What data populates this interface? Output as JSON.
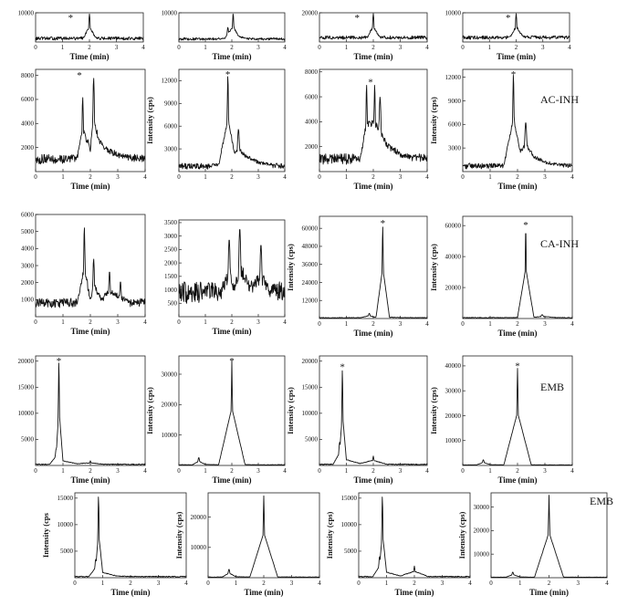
{
  "figure": {
    "row_labels": [
      "",
      "",
      "AC-INH",
      "CA-INH",
      "EMB",
      "EMB"
    ]
  },
  "chart_data": [
    {
      "type": "line",
      "xlabel": "Time (min)",
      "ylabel": "",
      "xticks": [
        0,
        1,
        2,
        3,
        4
      ],
      "yticks": [
        10000
      ],
      "xlim": [
        0,
        4
      ],
      "ylim": [
        0,
        10000
      ],
      "star_x": 1.3,
      "peaks": [
        [
          2.0,
          9600,
          0.025
        ]
      ],
      "baseline": 1200,
      "noise": 700,
      "x": [
        0,
        0.25,
        0.5,
        0.75,
        1,
        1.25,
        1.5,
        1.75,
        2,
        2.25,
        2.5,
        2.75,
        3,
        3.25,
        3.5,
        3.75,
        4
      ],
      "y": [
        1200,
        1300,
        1150,
        1400,
        1600,
        1500,
        1800,
        1900,
        9600,
        2200,
        1700,
        1500,
        1450,
        1350,
        1300,
        1250,
        1200
      ]
    },
    {
      "type": "line",
      "xlabel": "Time (min)",
      "ylabel": "",
      "xticks": [
        0,
        1,
        2,
        3,
        4
      ],
      "yticks": [
        10000
      ],
      "xlim": [
        0,
        4
      ],
      "ylim": [
        0,
        10000
      ],
      "star_x": null,
      "peaks": [
        [
          1.85,
          5000,
          0.03
        ],
        [
          2.05,
          9700,
          0.025
        ]
      ],
      "baseline": 1000,
      "noise": 600,
      "x": [
        0,
        0.25,
        0.5,
        0.75,
        1,
        1.25,
        1.5,
        1.75,
        1.85,
        2.05,
        2.25,
        2.5,
        2.75,
        3,
        3.25,
        3.5,
        3.75,
        4
      ],
      "y": [
        1000,
        1100,
        1200,
        1050,
        1300,
        1500,
        1600,
        2500,
        5000,
        9700,
        3500,
        2200,
        1800,
        1600,
        1500,
        1400,
        1300,
        1200
      ]
    },
    {
      "type": "line",
      "xlabel": "Time (min)",
      "ylabel": "",
      "xticks": [
        0,
        1,
        2,
        3,
        4
      ],
      "yticks": [
        20000
      ],
      "xlim": [
        0,
        4
      ],
      "ylim": [
        0,
        20000
      ],
      "star_x": 1.4,
      "peaks": [
        [
          2.0,
          19500,
          0.025
        ]
      ],
      "baseline": 3000,
      "noise": 1500,
      "x": [
        0,
        0.5,
        1,
        1.5,
        1.75,
        2,
        2.25,
        2.5,
        3,
        3.5,
        4
      ],
      "y": [
        3000,
        3200,
        3500,
        4000,
        4500,
        19500,
        5000,
        4000,
        3600,
        3300,
        3100
      ]
    },
    {
      "type": "line",
      "xlabel": "Time (min)",
      "ylabel": "",
      "xticks": [
        0,
        1,
        2,
        3,
        4
      ],
      "yticks": [
        10000
      ],
      "xlim": [
        0,
        4
      ],
      "ylim": [
        0,
        10000
      ],
      "star_x": 1.7,
      "peaks": [
        [
          2.0,
          9700,
          0.025
        ]
      ],
      "baseline": 1500,
      "noise": 800,
      "x": [
        0,
        0.5,
        1,
        1.5,
        1.75,
        2,
        2.25,
        2.5,
        3,
        3.5,
        4
      ],
      "y": [
        1500,
        1700,
        1900,
        2300,
        2600,
        9700,
        3200,
        2400,
        2000,
        1800,
        1600
      ]
    },
    {
      "type": "line",
      "xlabel": "Time (min)",
      "ylabel": "",
      "xticks": [
        0,
        1,
        2,
        3,
        4
      ],
      "yticks": [
        2000,
        4000,
        6000,
        8000
      ],
      "xlim": [
        0,
        4
      ],
      "ylim": [
        0,
        8500
      ],
      "star_x": 1.6,
      "peaks": [
        [
          1.72,
          6200,
          0.025
        ],
        [
          2.12,
          7800,
          0.03
        ]
      ],
      "baseline": 1000,
      "noise": 550,
      "x": [
        0,
        0.5,
        1,
        1.5,
        1.72,
        2,
        2.12,
        2.3,
        2.5,
        2.75,
        3,
        3.5,
        4
      ],
      "y": [
        900,
        1000,
        1300,
        1800,
        6200,
        3500,
        7800,
        5000,
        3800,
        3000,
        2500,
        1900,
        1500
      ]
    },
    {
      "type": "line",
      "xlabel": "",
      "ylabel": "Intensity (cps)",
      "xticks": [
        0,
        1,
        2,
        3,
        4
      ],
      "yticks": [
        3000,
        6000,
        9000,
        12000
      ],
      "xlim": [
        0,
        4
      ],
      "ylim": [
        0,
        13500
      ],
      "star_x": 1.85,
      "peaks": [
        [
          1.85,
          12700,
          0.025
        ],
        [
          2.25,
          5600,
          0.04
        ]
      ],
      "baseline": 700,
      "noise": 500,
      "x": [
        0,
        0.5,
        1,
        1.5,
        1.85,
        2.1,
        2.25,
        2.5,
        3,
        3.5,
        4
      ],
      "y": [
        600,
        700,
        800,
        1400,
        12700,
        4500,
        5600,
        3800,
        2200,
        1400,
        1000
      ]
    },
    {
      "type": "line",
      "xlabel": "Time (min)",
      "ylabel": "",
      "xticks": [
        0,
        1,
        2,
        3,
        4
      ],
      "yticks": [
        2000,
        4000,
        6000,
        8000
      ],
      "xlim": [
        0,
        4
      ],
      "ylim": [
        0,
        8200
      ],
      "star_x": 1.9,
      "peaks": [
        [
          1.75,
          7000,
          0.025
        ],
        [
          2.05,
          7000,
          0.025
        ],
        [
          2.25,
          6000,
          0.04
        ]
      ],
      "baseline": 1000,
      "noise": 550,
      "x": [
        0,
        0.5,
        1,
        1.5,
        1.75,
        2.05,
        2.25,
        2.5,
        3,
        3.5,
        4
      ],
      "y": [
        900,
        1000,
        1300,
        1800,
        7000,
        7000,
        6000,
        3800,
        2600,
        1900,
        1500
      ]
    },
    {
      "type": "line",
      "xlabel": "Time (min)",
      "ylabel": "Intensity (cps)",
      "xticks": [
        0,
        1,
        2,
        3,
        4
      ],
      "yticks": [
        3000,
        6000,
        9000,
        12000
      ],
      "xlim": [
        0,
        4
      ],
      "ylim": [
        0,
        13000
      ],
      "star_x": 1.85,
      "peaks": [
        [
          1.85,
          12400,
          0.025
        ],
        [
          2.3,
          6300,
          0.04
        ]
      ],
      "baseline": 700,
      "noise": 450,
      "x": [
        0,
        0.5,
        1,
        1.5,
        1.85,
        2.1,
        2.3,
        2.6,
        3,
        3.5,
        4
      ],
      "y": [
        700,
        750,
        850,
        1300,
        12400,
        4600,
        6300,
        3500,
        2200,
        1500,
        1100
      ]
    },
    {
      "type": "line",
      "xlabel": "Time (min)",
      "ylabel": "",
      "xticks": [
        0,
        1,
        2,
        3,
        4
      ],
      "yticks": [
        1000,
        2000,
        3000,
        4000,
        5000,
        6000
      ],
      "xlim": [
        0,
        4
      ],
      "ylim": [
        0,
        6000
      ],
      "star_x": null,
      "peaks": [
        [
          1.78,
          5300,
          0.025
        ],
        [
          2.12,
          3400,
          0.03
        ],
        [
          2.7,
          2700,
          0.03
        ],
        [
          3.1,
          2100,
          0.03
        ]
      ],
      "baseline": 800,
      "noise": 350,
      "x": [
        0,
        0.5,
        1,
        1.5,
        1.78,
        2,
        2.12,
        2.4,
        2.7,
        3.1,
        3.5,
        4
      ],
      "y": [
        800,
        850,
        900,
        1000,
        5300,
        1700,
        3400,
        1800,
        2700,
        2100,
        1300,
        1000
      ]
    },
    {
      "type": "line",
      "xlabel": "Time (min)",
      "ylabel": "",
      "xticks": [
        0,
        1,
        2,
        3,
        4
      ],
      "yticks": [
        500,
        1000,
        1500,
        2000,
        2500,
        3000,
        3500
      ],
      "xlim": [
        0,
        4
      ],
      "ylim": [
        0,
        3600
      ],
      "star_x": null,
      "peaks": [
        [
          1.9,
          2900,
          0.04
        ],
        [
          2.3,
          3300,
          0.04
        ],
        [
          3.1,
          2700,
          0.04
        ]
      ],
      "baseline": 900,
      "noise": 500,
      "x": [
        0,
        0.5,
        1,
        1.5,
        1.9,
        2.1,
        2.3,
        2.7,
        3.1,
        3.5,
        4
      ],
      "y": [
        800,
        900,
        1000,
        1200,
        2900,
        2000,
        3300,
        1900,
        2700,
        1500,
        1100
      ]
    },
    {
      "type": "line",
      "xlabel": "Time (min)",
      "ylabel": "Intensity (cps)",
      "xticks": [
        0,
        1,
        2,
        3,
        4
      ],
      "yticks": [
        12000,
        24000,
        36000,
        48000,
        60000
      ],
      "xlim": [
        0,
        4
      ],
      "ylim": [
        0,
        68000
      ],
      "star_x": 2.35,
      "peaks": [
        [
          2.35,
          62000,
          0.02
        ],
        [
          1.85,
          3500,
          0.03
        ]
      ],
      "baseline": 500,
      "noise": 350,
      "x": [
        0,
        0.5,
        1,
        1.5,
        1.85,
        2.1,
        2.35,
        2.6,
        3,
        3.5,
        4
      ],
      "y": [
        500,
        550,
        600,
        800,
        3500,
        1200,
        62000,
        1500,
        1000,
        700,
        600
      ]
    },
    {
      "type": "line",
      "xlabel": "Time (min)",
      "ylabel": "Intensity (cps)",
      "xticks": [
        0,
        1,
        2,
        3,
        4
      ],
      "yticks": [
        20000,
        40000,
        60000
      ],
      "xlim": [
        0,
        4
      ],
      "ylim": [
        0,
        66000
      ],
      "star_x": 2.3,
      "peaks": [
        [
          2.3,
          59000,
          0.02
        ],
        [
          2.9,
          2500,
          0.04
        ]
      ],
      "baseline": 500,
      "noise": 350,
      "x": [
        0,
        0.5,
        1,
        1.5,
        2,
        2.3,
        2.6,
        2.9,
        3.5,
        4
      ],
      "y": [
        500,
        500,
        600,
        800,
        1200,
        59000,
        1400,
        2500,
        900,
        700
      ]
    },
    {
      "type": "line",
      "xlabel": "Time (min)",
      "ylabel": "",
      "xticks": [
        0,
        1,
        2,
        3,
        4
      ],
      "yticks": [
        5000,
        10000,
        15000,
        20000
      ],
      "xlim": [
        0,
        4
      ],
      "ylim": [
        0,
        21000
      ],
      "star_x": 0.85,
      "peaks": [
        [
          0.85,
          20000,
          0.02
        ],
        [
          0.75,
          3200,
          0.03
        ],
        [
          2.0,
          900,
          0.02
        ]
      ],
      "baseline": 200,
      "noise": 120,
      "x": [
        0,
        0.5,
        0.75,
        0.85,
        1,
        1.5,
        2,
        2.5,
        3,
        3.5,
        4
      ],
      "y": [
        200,
        300,
        3200,
        20000,
        1600,
        600,
        900,
        400,
        300,
        250,
        200
      ]
    },
    {
      "type": "line",
      "xlabel": "Time (min)",
      "ylabel": "Intensity (cps)",
      "xticks": [
        0,
        1,
        2,
        3,
        4
      ],
      "yticks": [
        10000,
        20000,
        30000
      ],
      "xlim": [
        0,
        4
      ],
      "ylim": [
        0,
        36000
      ],
      "star_x": 2.0,
      "peaks": [
        [
          2.0,
          34500,
          0.02
        ],
        [
          0.75,
          2600,
          0.03
        ]
      ],
      "baseline": 200,
      "noise": 120,
      "x": [
        0,
        0.5,
        0.75,
        1,
        1.5,
        2,
        2.5,
        3,
        3.5,
        4
      ],
      "y": [
        200,
        300,
        2600,
        600,
        400,
        34500,
        500,
        300,
        250,
        200
      ]
    },
    {
      "type": "line",
      "xlabel": "Time (min)",
      "ylabel": "Intensity (cps)",
      "xticks": [
        0,
        1,
        2,
        3,
        4
      ],
      "yticks": [
        5000,
        10000,
        15000,
        20000
      ],
      "xlim": [
        0,
        4
      ],
      "ylim": [
        0,
        21000
      ],
      "star_x": 0.85,
      "peaks": [
        [
          0.85,
          18500,
          0.02
        ],
        [
          0.75,
          4500,
          0.03
        ],
        [
          2.0,
          1800,
          0.02
        ]
      ],
      "baseline": 200,
      "noise": 120,
      "x": [
        0,
        0.5,
        0.75,
        0.85,
        1,
        1.5,
        2,
        2.5,
        3,
        3.5,
        4
      ],
      "y": [
        200,
        300,
        4500,
        18500,
        2000,
        700,
        1800,
        400,
        300,
        250,
        200
      ]
    },
    {
      "type": "line",
      "xlabel": "Time (min)",
      "ylabel": "Intensity (cps)",
      "xticks": [
        0,
        1,
        2,
        3,
        4
      ],
      "yticks": [
        10000,
        20000,
        30000,
        40000
      ],
      "xlim": [
        0,
        4
      ],
      "ylim": [
        0,
        44000
      ],
      "star_x": 2.0,
      "peaks": [
        [
          2.0,
          39000,
          0.02
        ],
        [
          0.75,
          2300,
          0.03
        ]
      ],
      "baseline": 200,
      "noise": 120,
      "x": [
        0,
        0.5,
        0.75,
        1,
        1.5,
        2,
        2.5,
        3,
        3.5,
        4
      ],
      "y": [
        200,
        300,
        2300,
        600,
        400,
        39000,
        500,
        300,
        250,
        200
      ]
    },
    {
      "type": "line",
      "xlabel": "Time (min)",
      "ylabel": "Intensity (cps",
      "xticks": [
        0,
        1,
        2,
        3,
        4
      ],
      "yticks": [
        5000,
        10000,
        15000
      ],
      "xlim": [
        0,
        4
      ],
      "ylim": [
        0,
        16000
      ],
      "star_x": null,
      "peaks": [
        [
          0.85,
          15500,
          0.02
        ],
        [
          0.75,
          3500,
          0.03
        ]
      ],
      "baseline": 200,
      "noise": 120,
      "x": [
        0,
        0.5,
        0.75,
        0.85,
        1,
        1.5,
        2,
        2.5,
        3,
        3.5,
        4
      ],
      "y": [
        200,
        300,
        3500,
        15500,
        1800,
        600,
        400,
        300,
        250,
        220,
        200
      ]
    },
    {
      "type": "line",
      "xlabel": "Time (min)",
      "ylabel": "Intensity (cps)",
      "xticks": [
        0,
        1,
        2,
        3,
        4
      ],
      "yticks": [
        10000,
        20000
      ],
      "xlim": [
        0,
        4
      ],
      "ylim": [
        0,
        28000
      ],
      "star_x": null,
      "peaks": [
        [
          2.0,
          27000,
          0.02
        ],
        [
          0.75,
          2800,
          0.03
        ]
      ],
      "baseline": 200,
      "noise": 120,
      "x": [
        0,
        0.5,
        0.75,
        1,
        1.5,
        2,
        2.5,
        3,
        3.5,
        4
      ],
      "y": [
        200,
        300,
        2800,
        600,
        400,
        27000,
        500,
        300,
        250,
        200
      ]
    },
    {
      "type": "line",
      "xlabel": "Time (min)",
      "ylabel": "Intensity (cps)",
      "xticks": [
        0,
        1,
        2,
        3,
        4
      ],
      "yticks": [
        5000,
        10000,
        15000
      ],
      "xlim": [
        0,
        4
      ],
      "ylim": [
        0,
        16000
      ],
      "star_x": null,
      "peaks": [
        [
          0.85,
          15500,
          0.02
        ],
        [
          0.75,
          4000,
          0.03
        ],
        [
          2.0,
          2200,
          0.02
        ]
      ],
      "baseline": 200,
      "noise": 120,
      "x": [
        0,
        0.5,
        0.75,
        0.85,
        1,
        1.5,
        2,
        2.5,
        3,
        3.5,
        4
      ],
      "y": [
        200,
        300,
        4000,
        15500,
        1900,
        600,
        2200,
        400,
        300,
        250,
        200
      ]
    },
    {
      "type": "line",
      "xlabel": "Time (min)",
      "ylabel": "Intensity (cps)",
      "xticks": [
        0,
        1,
        2,
        3,
        4
      ],
      "yticks": [
        10000,
        20000,
        30000
      ],
      "xlim": [
        0,
        4
      ],
      "ylim": [
        0,
        36000
      ],
      "star_x": null,
      "peaks": [
        [
          2.0,
          35000,
          0.02
        ],
        [
          0.75,
          2400,
          0.03
        ]
      ],
      "baseline": 200,
      "noise": 120,
      "x": [
        0,
        0.5,
        0.75,
        1,
        1.5,
        2,
        2.5,
        3,
        3.5,
        4
      ],
      "y": [
        200,
        300,
        2400,
        600,
        400,
        35000,
        500,
        300,
        250,
        200
      ]
    }
  ]
}
